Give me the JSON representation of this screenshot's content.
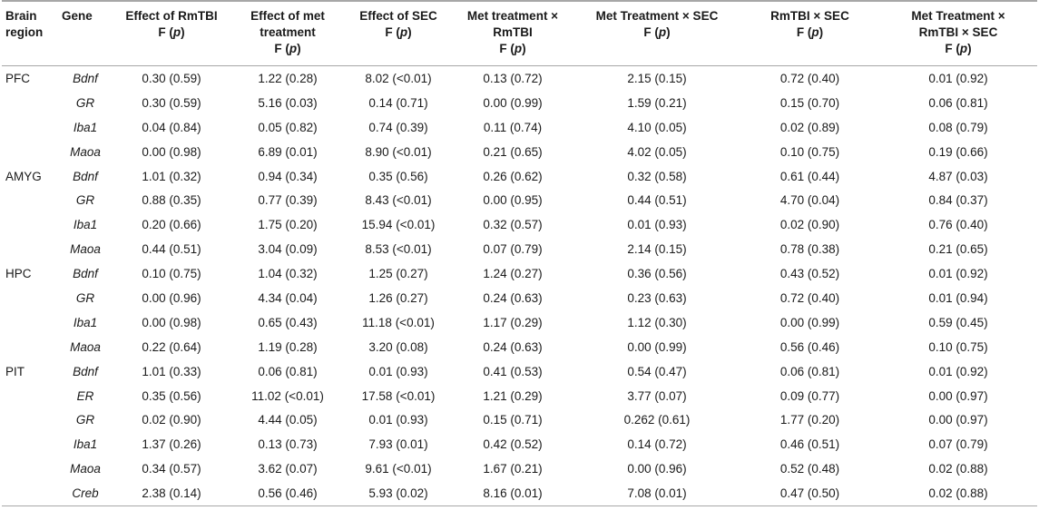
{
  "headers": {
    "region": [
      "Brain",
      "region"
    ],
    "gene": "Gene",
    "c1": [
      "Effect of RmTBI",
      "F (",
      "p",
      ")"
    ],
    "c2": [
      "Effect of met",
      "treatment",
      "F (",
      "p",
      ")"
    ],
    "c3": [
      "Effect of SEC",
      "F (",
      "p",
      ")"
    ],
    "c4": [
      "Met treatment ×",
      "RmTBI",
      "F (",
      "p",
      ")"
    ],
    "c5": [
      "Met Treatment × SEC",
      "F (",
      "p",
      ")"
    ],
    "c6": [
      "RmTBI × SEC",
      "F (",
      "p",
      ")"
    ],
    "c7": [
      "Met Treatment ×",
      "RmTBI × SEC",
      "F (",
      "p",
      ")"
    ]
  },
  "rows": [
    {
      "region": "PFC",
      "gene": "Bdnf",
      "v": [
        "0.30 (0.59)",
        "1.22 (0.28)",
        "8.02 (<0.01)",
        "0.13 (0.72)",
        "2.15 (0.15)",
        "0.72 (0.40)",
        "0.01 (0.92)"
      ]
    },
    {
      "region": "",
      "gene": "GR",
      "v": [
        "0.30 (0.59)",
        "5.16 (0.03)",
        "0.14 (0.71)",
        "0.00 (0.99)",
        "1.59 (0.21)",
        "0.15 (0.70)",
        "0.06 (0.81)"
      ]
    },
    {
      "region": "",
      "gene": "Iba1",
      "v": [
        "0.04 (0.84)",
        "0.05 (0.82)",
        "0.74 (0.39)",
        "0.11 (0.74)",
        "4.10 (0.05)",
        "0.02 (0.89)",
        "0.08 (0.79)"
      ]
    },
    {
      "region": "",
      "gene": "Maoa",
      "v": [
        "0.00 (0.98)",
        "6.89 (0.01)",
        "8.90 (<0.01)",
        "0.21 (0.65)",
        "4.02 (0.05)",
        "0.10 (0.75)",
        "0.19 (0.66)"
      ]
    },
    {
      "region": "AMYG",
      "gene": "Bdnf",
      "v": [
        "1.01 (0.32)",
        "0.94 (0.34)",
        "0.35 (0.56)",
        "0.26 (0.62)",
        "0.32 (0.58)",
        "0.61 (0.44)",
        "4.87 (0.03)"
      ]
    },
    {
      "region": "",
      "gene": "GR",
      "v": [
        "0.88 (0.35)",
        "0.77 (0.39)",
        "8.43 (<0.01)",
        "0.00 (0.95)",
        "0.44 (0.51)",
        "4.70 (0.04)",
        "0.84 (0.37)"
      ]
    },
    {
      "region": "",
      "gene": "Iba1",
      "v": [
        "0.20 (0.66)",
        "1.75 (0.20)",
        "15.94 (<0.01)",
        "0.32 (0.57)",
        "0.01 (0.93)",
        "0.02 (0.90)",
        "0.76 (0.40)"
      ]
    },
    {
      "region": "",
      "gene": "Maoa",
      "v": [
        "0.44 (0.51)",
        "3.04 (0.09)",
        "8.53 (<0.01)",
        "0.07 (0.79)",
        "2.14 (0.15)",
        "0.78 (0.38)",
        "0.21 (0.65)"
      ]
    },
    {
      "region": "HPC",
      "gene": "Bdnf",
      "v": [
        "0.10 (0.75)",
        "1.04 (0.32)",
        "1.25 (0.27)",
        "1.24 (0.27)",
        "0.36 (0.56)",
        "0.43 (0.52)",
        "0.01 (0.92)"
      ]
    },
    {
      "region": "",
      "gene": "GR",
      "v": [
        "0.00 (0.96)",
        "4.34 (0.04)",
        "1.26 (0.27)",
        "0.24 (0.63)",
        "0.23 (0.63)",
        "0.72 (0.40)",
        "0.01 (0.94)"
      ]
    },
    {
      "region": "",
      "gene": "Iba1",
      "v": [
        "0.00 (0.98)",
        "0.65 (0.43)",
        "11.18 (<0.01)",
        "1.17 (0.29)",
        "1.12 (0.30)",
        "0.00 (0.99)",
        "0.59 (0.45)"
      ]
    },
    {
      "region": "",
      "gene": "Maoa",
      "v": [
        "0.22 (0.64)",
        "1.19 (0.28)",
        "3.20 (0.08)",
        "0.24 (0.63)",
        "0.00 (0.99)",
        "0.56 (0.46)",
        "0.10 (0.75)"
      ]
    },
    {
      "region": "PIT",
      "gene": "Bdnf",
      "v": [
        "1.01 (0.33)",
        "0.06 (0.81)",
        "0.01 (0.93)",
        "0.41 (0.53)",
        "0.54 (0.47)",
        "0.06 (0.81)",
        "0.01 (0.92)"
      ]
    },
    {
      "region": "",
      "gene": "ER",
      "v": [
        "0.35 (0.56)",
        "11.02 (<0.01)",
        "17.58 (<0.01)",
        "1.21 (0.29)",
        "3.77 (0.07)",
        "0.09 (0.77)",
        "0.00 (0.97)"
      ]
    },
    {
      "region": "",
      "gene": "GR",
      "v": [
        "0.02 (0.90)",
        "4.44 (0.05)",
        "0.01 (0.93)",
        "0.15 (0.71)",
        "0.262 (0.61)",
        "1.77 (0.20)",
        "0.00 (0.97)"
      ]
    },
    {
      "region": "",
      "gene": "Iba1",
      "v": [
        "1.37 (0.26)",
        "0.13 (0.73)",
        "7.93 (0.01)",
        "0.42 (0.52)",
        "0.14 (0.72)",
        "0.46 (0.51)",
        "0.07 (0.79)"
      ]
    },
    {
      "region": "",
      "gene": "Maoa",
      "v": [
        "0.34 (0.57)",
        "3.62 (0.07)",
        "9.61 (<0.01)",
        "1.67 (0.21)",
        "0.00 (0.96)",
        "0.52 (0.48)",
        "0.02 (0.88)"
      ]
    },
    {
      "region": "",
      "gene": "Creb",
      "v": [
        "2.38 (0.14)",
        "0.56 (0.46)",
        "5.93 (0.02)",
        "8.16 (0.01)",
        "7.08 (0.01)",
        "0.47 (0.50)",
        "0.02 (0.88)"
      ]
    }
  ]
}
